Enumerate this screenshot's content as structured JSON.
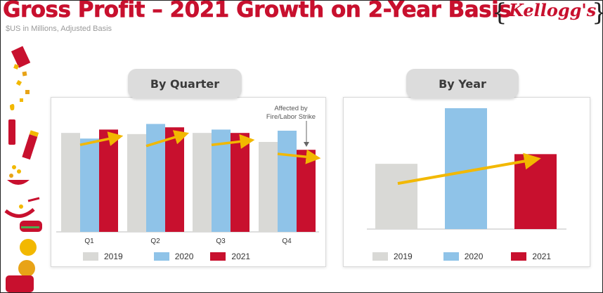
{
  "header": {
    "title": "Gross Profit – 2021 Growth on 2-Year Basis",
    "subtitle": "$US in Millions, Adjusted Basis",
    "logo_text": "Kellogg's"
  },
  "colors": {
    "2019": "#d9d9d6",
    "2020": "#8fc3e8",
    "2021": "#c8102e",
    "arrow": "#f2b800",
    "brand": "#c8102e"
  },
  "chart_data": [
    {
      "type": "bar",
      "title": "By Quarter",
      "categories": [
        "Q1",
        "Q2",
        "Q3",
        "Q4"
      ],
      "series": [
        {
          "name": "2019",
          "values": [
            0.88,
            0.87,
            0.88,
            0.8
          ]
        },
        {
          "name": "2020",
          "values": [
            0.83,
            0.96,
            0.91,
            0.9
          ]
        },
        {
          "name": "2021",
          "values": [
            0.91,
            0.93,
            0.88,
            0.73
          ]
        }
      ],
      "annotation": "Affected by Fire/Labor Strike",
      "annotation_category": "Q4",
      "legend": [
        "2019",
        "2020",
        "2021"
      ],
      "legend_position": "bottom",
      "grid": false
    },
    {
      "type": "bar",
      "title": "By Year",
      "categories": [
        "2019",
        "2020",
        "2021"
      ],
      "series": [
        {
          "name": "Gross Profit",
          "values": [
            0.54,
            1.0,
            0.62
          ]
        }
      ],
      "legend": [
        "2019",
        "2020",
        "2021"
      ],
      "legend_position": "bottom",
      "grid": false
    }
  ]
}
